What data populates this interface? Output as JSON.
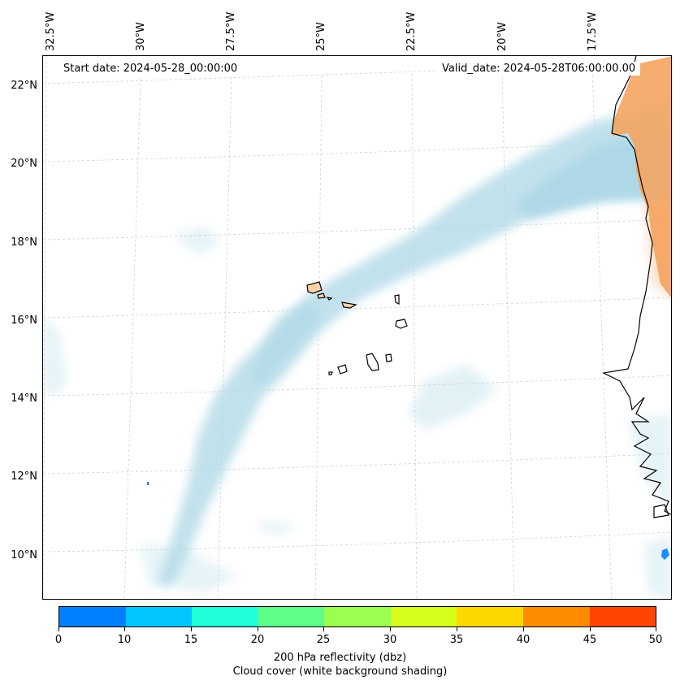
{
  "map": {
    "start_date": "Start date: 2024-05-28_00:00:00",
    "valid_date": "Valid_date: 2024-05-28T06:00:00.00",
    "lon_labels": [
      "32.5°W",
      "30°W",
      "27.5°W",
      "25°W",
      "22.5°W",
      "20°W",
      "17.5°W"
    ],
    "lat_labels": [
      "22°N",
      "20°N",
      "18°N",
      "16°N",
      "14°N",
      "12°N",
      "10°N"
    ],
    "land_color": "#f4a460",
    "island_color": "#f9d1a7",
    "cloud_color": "#add8e6",
    "radar_color": "#0080ff"
  },
  "colorbar": {
    "ticks": [
      "0",
      "10",
      "15",
      "20",
      "25",
      "30",
      "35",
      "40",
      "45",
      "50"
    ],
    "colors": [
      "#0080ff",
      "#00c5ff",
      "#1fffd9",
      "#5dff8a",
      "#9aff4f",
      "#d6ff1c",
      "#ffd700",
      "#ff8c00",
      "#ff4500"
    ],
    "label": "200 hPa reflectivity (dbz)",
    "sublabel": "Cloud cover (white background shading)"
  }
}
